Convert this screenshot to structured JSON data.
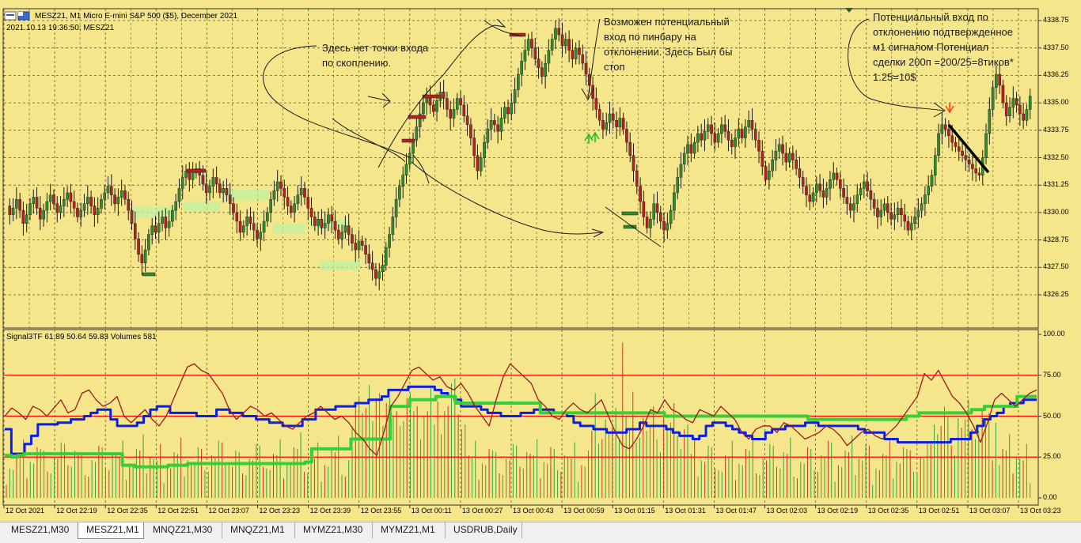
{
  "window": {
    "symbol_title": "MESZ21, M1  Micro E-mini S&P 500 ($5), December 2021",
    "timestamp": "2021.10.13 19:36:50; MESZ21"
  },
  "indicator": {
    "label": "Signal3TF 61.89 50.64 59.83 Volumes 581"
  },
  "price_axis": [
    "4338.75",
    "4337.50",
    "4336.25",
    "4335.00",
    "4333.75",
    "4332.50",
    "4331.25",
    "4330.00",
    "4328.75",
    "4327.50",
    "4326.25"
  ],
  "indicator_axis": [
    "100.00",
    "75.00",
    "50.00",
    "25.00",
    "0.00"
  ],
  "time_axis": [
    "12 Oct 2021",
    "12 Oct 22:19",
    "12 Oct 22:35",
    "12 Oct 22:51",
    "12 Oct 23:07",
    "12 Oct 23:23",
    "12 Oct 23:39",
    "12 Oct 23:55",
    "13 Oct 00:11",
    "13 Oct 00:27",
    "13 Oct 00:43",
    "13 Oct 00:59",
    "13 Oct 01:15",
    "13 Oct 01:31",
    "13 Oct 01:47",
    "13 Oct 02:03",
    "13 Oct 02:19",
    "13 Oct 02:35",
    "13 Oct 02:51",
    "13 Oct 03:07",
    "13 Oct 03:23"
  ],
  "annotations": {
    "note1": [
      "Здесь нет точки входа",
      "по скоплению."
    ],
    "note2": [
      "Возможен потенциальный",
      "вход по пинбару на",
      "отклонении. Здесь Был бы",
      "стоп"
    ],
    "note3": [
      "Потенциальный вход по",
      "отклонению подтвержденное",
      "м1 сигналом Потенциал",
      "сделки 200п =200/25=8тиков*",
      "1.25=10$"
    ]
  },
  "colors": {
    "chart_bg": "#f5e68c",
    "grid": "#5a5a3a",
    "bull_candle": "#2e8b2e",
    "bear_candle": "#b22222",
    "level_red": "#ff0000",
    "line_blue": "#0a1fe6",
    "line_green": "#35d035",
    "line_darkred": "#a01818"
  },
  "tabs": [
    {
      "label": "MESZ21,M30",
      "active": false
    },
    {
      "label": "MESZ21,M1",
      "active": true
    },
    {
      "label": "MNQZ21,M30",
      "active": false
    },
    {
      "label": "MNQZ21,M1",
      "active": false
    },
    {
      "label": "MYMZ21,M30",
      "active": false
    },
    {
      "label": "MYMZ21,M1",
      "active": false
    },
    {
      "label": "USDRUB,Daily",
      "active": false
    }
  ],
  "chart_data": [
    {
      "type": "candlestick",
      "title": "MESZ21, M1  Micro E-mini S&P 500 ($5), December 2021",
      "ylim": [
        4325.5,
        4339.2
      ],
      "close_path": [
        4330.3,
        4329.9,
        4330.2,
        4330.6,
        4330.1,
        4329.5,
        4329.9,
        4330.4,
        4330.7,
        4330.2,
        4329.7,
        4330.1,
        4330.5,
        4330.8,
        4330.4,
        4330.0,
        4330.3,
        4330.6,
        4330.9,
        4330.5,
        4330.2,
        4329.8,
        4330.1,
        4330.4,
        4330.7,
        4330.3,
        4329.9,
        4330.2,
        4330.6,
        4330.9,
        4331.2,
        4330.8,
        4330.4,
        4330.7,
        4331.0,
        4330.6,
        4330.1,
        4329.5,
        4328.8,
        4328.1,
        4327.7,
        4328.3,
        4329.0,
        4329.4,
        4329.1,
        4329.5,
        4329.8,
        4329.3,
        4329.6,
        4330.1,
        4330.5,
        4331.1,
        4331.6,
        4331.9,
        4331.5,
        4331.8,
        4332.0,
        4331.7,
        4331.3,
        4330.9,
        4331.2,
        4331.6,
        4331.3,
        4330.9,
        4331.1,
        4330.8,
        4330.4,
        4330.0,
        4329.6,
        4329.1,
        4329.4,
        4329.8,
        4329.5,
        4329.2,
        4328.8,
        4329.1,
        4329.6,
        4330.0,
        4330.6,
        4331.0,
        4331.4,
        4331.1,
        4330.7,
        4330.3,
        4330.0,
        4330.4,
        4330.8,
        4331.1,
        4330.7,
        4330.2,
        4329.8,
        4329.4,
        4329.7,
        4329.3,
        4329.5,
        4329.9,
        4329.6,
        4329.2,
        4328.8,
        4329.1,
        4329.4,
        4329.0,
        4328.6,
        4328.3,
        4328.7,
        4328.5,
        4328.1,
        4327.7,
        4327.4,
        4327.0,
        4327.3,
        4327.6,
        4328.4,
        4329.0,
        4329.8,
        4330.6,
        4331.2,
        4331.7,
        4332.2,
        4332.7,
        4333.3,
        4333.9,
        4334.5,
        4335.0,
        4335.3,
        4334.9,
        4334.6,
        4335.1,
        4335.5,
        4335.2,
        4334.7,
        4334.3,
        4334.7,
        4335.2,
        4334.9,
        4334.4,
        4334.0,
        4333.4,
        4332.6,
        4331.9,
        4332.5,
        4333.2,
        4333.8,
        4334.2,
        4334.0,
        4333.7,
        4334.3,
        4334.8,
        4334.5,
        4335.0,
        4335.6,
        4336.3,
        4336.9,
        4337.4,
        4337.9,
        4337.5,
        4337.0,
        4336.6,
        4336.2,
        4336.8,
        4337.4,
        4337.9,
        4338.4,
        4338.1,
        4337.6,
        4337.9,
        4337.4,
        4337.0,
        4337.5,
        4337.2,
        4336.8,
        4336.3,
        4335.8,
        4335.2,
        4334.7,
        4334.2,
        4333.8,
        4334.1,
        4334.5,
        4334.2,
        4333.9,
        4334.3,
        4333.8,
        4333.2,
        4332.6,
        4331.9,
        4331.2,
        4330.5,
        4329.8,
        4329.3,
        4329.7,
        4330.4,
        4330.0,
        4329.6,
        4329.2,
        4329.5,
        4330.1,
        4330.9,
        4331.6,
        4332.2,
        4332.7,
        4333.1,
        4332.7,
        4333.2,
        4333.6,
        4333.3,
        4333.7,
        4334.0,
        4333.6,
        4333.2,
        4333.6,
        4334.0,
        4333.7,
        4333.3,
        4333.0,
        4333.4,
        4333.8,
        4333.4,
        4333.9,
        4334.2,
        4333.8,
        4333.3,
        4332.8,
        4332.1,
        4331.5,
        4331.9,
        4332.4,
        4332.8,
        4333.1,
        4332.7,
        4332.3,
        4332.7,
        4332.4,
        4332.0,
        4331.6,
        4331.2,
        4330.8,
        4330.5,
        4330.9,
        4331.3,
        4331.0,
        4330.7,
        4331.1,
        4331.5,
        4331.8,
        4331.5,
        4331.1,
        4330.7,
        4330.4,
        4330.1,
        4330.4,
        4330.8,
        4331.1,
        4331.4,
        4331.0,
        4330.6,
        4330.2,
        4329.8,
        4330.1,
        4330.4,
        4330.0,
        4329.7,
        4329.9,
        4330.2,
        4329.9,
        4329.6,
        4329.2,
        4329.5,
        4329.8,
        4330.1,
        4330.4,
        4330.8,
        4331.2,
        4331.7,
        4332.6,
        4333.6,
        4334.0,
        4333.8,
        4333.5,
        4333.2,
        4333.0,
        4332.8,
        4332.6,
        4332.4,
        4332.2,
        4332.0,
        4331.8,
        4331.7,
        4332.5,
        4333.6,
        4334.7,
        4335.7,
        4336.3,
        4335.8,
        4335.0,
        4334.4,
        4334.8,
        4335.2,
        4334.9,
        4334.5,
        4334.2,
        4334.7,
        4335.3
      ]
    },
    {
      "type": "line",
      "title": "Signal3TF 61.89 50.64 59.83 Volumes 581",
      "ylim": [
        0,
        100
      ],
      "levels": [
        75,
        50,
        25
      ],
      "series": [
        {
          "name": "",
          "color": "#0a1fe6",
          "values": [
            42,
            27,
            27,
            33,
            38,
            45,
            45,
            45,
            46,
            46,
            48,
            48,
            50,
            52,
            54,
            54,
            48,
            44,
            44,
            44,
            46,
            50,
            54,
            56,
            56,
            52,
            52,
            52,
            52,
            50,
            50,
            50,
            54,
            54,
            52,
            52,
            50,
            50,
            48,
            48,
            46,
            46,
            44,
            44,
            44,
            48,
            48,
            54,
            54,
            54,
            56,
            56,
            56,
            58,
            58,
            60,
            60,
            62,
            66,
            66,
            66,
            68,
            68,
            68,
            68,
            66,
            64,
            62,
            60,
            56,
            56,
            56,
            54,
            52,
            52,
            50,
            50,
            50,
            52,
            52,
            54,
            54,
            54,
            52,
            52,
            50,
            46,
            44,
            44,
            42,
            42,
            40,
            40,
            40,
            42,
            42,
            46,
            44,
            44,
            44,
            42,
            40,
            38,
            38,
            36,
            38,
            44,
            46,
            46,
            44,
            42,
            40,
            38,
            36,
            36,
            40,
            42,
            42,
            44,
            44,
            44,
            46,
            46,
            44,
            44,
            44,
            44,
            44,
            44,
            42,
            40,
            40,
            40,
            36,
            36,
            34,
            34,
            34,
            34,
            34,
            34,
            34,
            34,
            36,
            36,
            36,
            40,
            44,
            48,
            50,
            52,
            56,
            58,
            58,
            60,
            60,
            60
          ]
        },
        {
          "name": "",
          "color": "#35d035",
          "values": [
            26,
            25,
            26,
            27,
            27,
            27,
            27,
            27,
            27,
            27,
            27,
            27,
            27,
            27,
            27,
            27,
            27,
            27,
            20,
            20,
            19,
            19,
            19,
            19,
            19,
            20,
            20,
            20,
            21,
            21,
            21,
            21,
            21,
            21,
            21,
            21,
            21,
            21,
            21,
            21,
            21,
            21,
            21,
            21,
            21,
            21,
            22,
            30,
            30,
            30,
            30,
            30,
            30,
            36,
            36,
            36,
            36,
            36,
            36,
            56,
            56,
            56,
            60,
            60,
            60,
            60,
            62,
            62,
            62,
            58,
            58,
            58,
            58,
            58,
            58,
            58,
            58,
            58,
            58,
            58,
            58,
            58,
            52,
            52,
            52,
            52,
            52,
            52,
            52,
            52,
            52,
            52,
            52,
            52,
            52,
            52,
            52,
            52,
            52,
            52,
            52,
            50,
            50,
            50,
            50,
            50,
            50,
            50,
            50,
            50,
            50,
            50,
            50,
            50,
            50,
            50,
            50,
            50,
            50,
            50,
            50,
            50,
            50,
            48,
            48,
            48,
            48,
            48,
            48,
            48,
            48,
            48,
            48,
            48,
            48,
            48,
            48,
            48,
            50,
            50,
            52,
            52,
            52,
            52,
            52,
            52,
            52,
            52,
            54,
            54,
            56,
            56,
            56,
            56,
            56,
            62,
            62,
            62,
            62
          ]
        },
        {
          "name": "",
          "color": "#a01818",
          "values": [
            50,
            55,
            52,
            48,
            56,
            54,
            50,
            55,
            60,
            52,
            54,
            64,
            66,
            60,
            56,
            58,
            62,
            50,
            46,
            50,
            54,
            48,
            44,
            50,
            60,
            70,
            80,
            82,
            78,
            76,
            70,
            64,
            54,
            48,
            52,
            56,
            54,
            50,
            52,
            48,
            44,
            42,
            46,
            50,
            52,
            56,
            52,
            48,
            50,
            46,
            40,
            36,
            30,
            26,
            40,
            56,
            62,
            70,
            78,
            80,
            76,
            72,
            74,
            68,
            66,
            70,
            64,
            56,
            50,
            44,
            60,
            74,
            82,
            78,
            74,
            70,
            60,
            56,
            50,
            48,
            54,
            58,
            54,
            52,
            56,
            60,
            50,
            40,
            32,
            30,
            36,
            44,
            54,
            52,
            60,
            54,
            52,
            48,
            46,
            54,
            52,
            50,
            56,
            52,
            48,
            40,
            36,
            42,
            44,
            44,
            40,
            46,
            44,
            40,
            36,
            38,
            40,
            44,
            42,
            38,
            32,
            36,
            40,
            42,
            38,
            36,
            40,
            44,
            50,
            56,
            62,
            76,
            72,
            78,
            70,
            62,
            58,
            52,
            44,
            34,
            46,
            60,
            64,
            60,
            56,
            60,
            64,
            66
          ]
        }
      ]
    }
  ]
}
